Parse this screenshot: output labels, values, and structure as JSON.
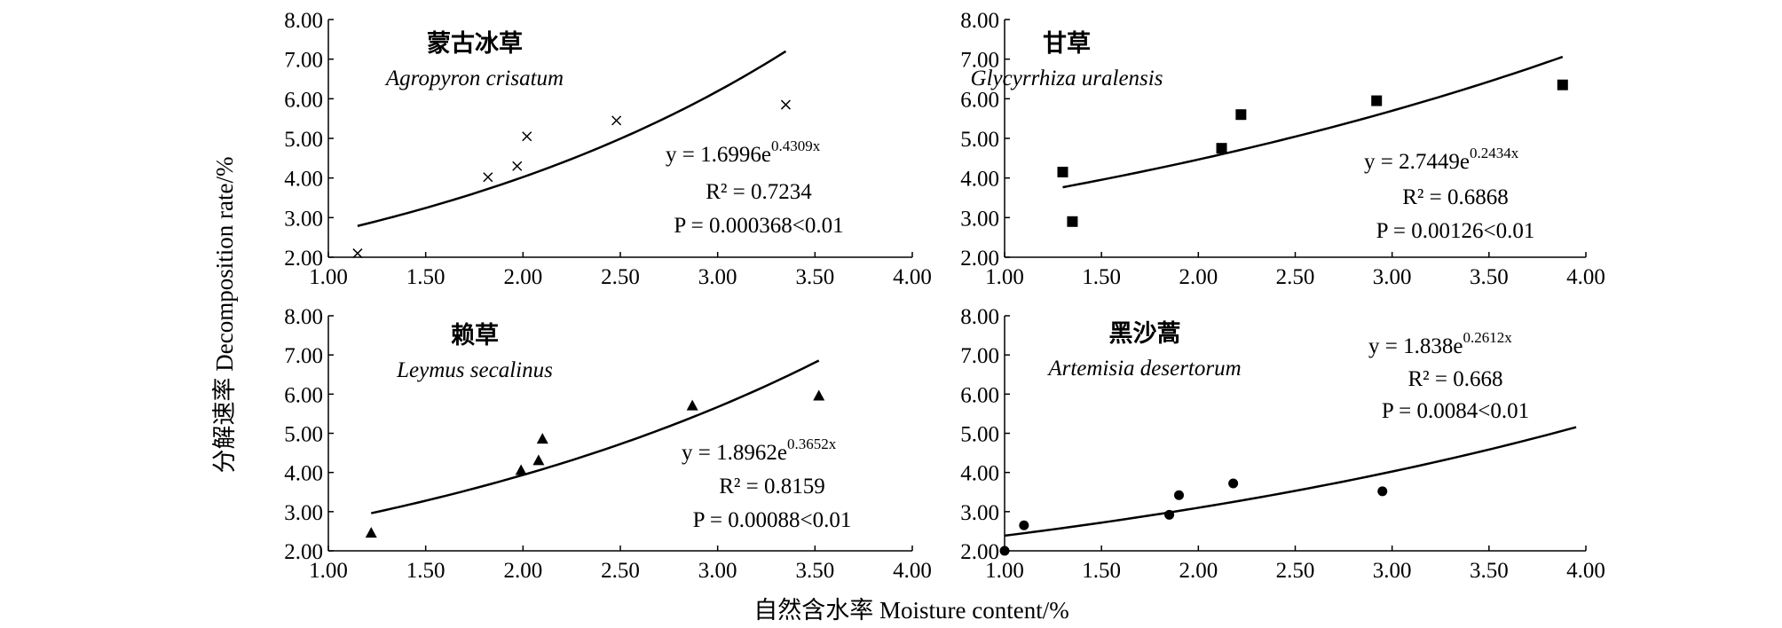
{
  "figure": {
    "ylabel": "分解速率 Decomposition rate/%",
    "xlabel": "自然含水率 Moisture content/%"
  },
  "chart_data": [
    {
      "type": "scatter",
      "id": "agropyron",
      "title_cn": "蒙古冰草",
      "title_latin": "Agropyron crisatum",
      "marker": "x",
      "xlim": [
        1.0,
        4.0
      ],
      "ylim": [
        2.0,
        8.0
      ],
      "x_ticks": [
        "1.00",
        "1.50",
        "2.00",
        "2.50",
        "3.00",
        "3.50",
        "4.00"
      ],
      "y_ticks": [
        "2.00",
        "3.00",
        "4.00",
        "5.00",
        "6.00",
        "7.00",
        "8.00"
      ],
      "points": [
        {
          "x": 1.15,
          "y": 2.1
        },
        {
          "x": 1.82,
          "y": 4.02
        },
        {
          "x": 1.97,
          "y": 4.3
        },
        {
          "x": 2.02,
          "y": 5.05
        },
        {
          "x": 2.48,
          "y": 5.45
        },
        {
          "x": 3.35,
          "y": 5.85
        }
      ],
      "fit": {
        "a": 1.6996,
        "b": 0.4309,
        "x_range": [
          1.15,
          3.35
        ]
      },
      "equation": {
        "coef": "y = 1.6996e",
        "exp": "0.4309x",
        "r2": "R² = 0.7234",
        "p": "P = 0.000368<0.01"
      }
    },
    {
      "type": "scatter",
      "id": "glycyrrhiza",
      "title_cn": "甘草",
      "title_latin": "Glycyrrhiza uralensis",
      "marker": "square",
      "xlim": [
        1.0,
        4.0
      ],
      "ylim": [
        2.0,
        8.0
      ],
      "x_ticks": [
        "1.00",
        "1.50",
        "2.00",
        "2.50",
        "3.00",
        "3.50",
        "4.00"
      ],
      "y_ticks": [
        "2.00",
        "3.00",
        "4.00",
        "5.00",
        "6.00",
        "7.00",
        "8.00"
      ],
      "points": [
        {
          "x": 1.3,
          "y": 4.15
        },
        {
          "x": 1.35,
          "y": 2.9
        },
        {
          "x": 2.12,
          "y": 4.75
        },
        {
          "x": 2.22,
          "y": 5.6
        },
        {
          "x": 2.92,
          "y": 5.95
        },
        {
          "x": 3.88,
          "y": 6.35
        }
      ],
      "fit": {
        "a": 2.7449,
        "b": 0.2434,
        "x_range": [
          1.3,
          3.88
        ]
      },
      "equation": {
        "coef": "y = 2.7449e",
        "exp": "0.2434x",
        "r2": "R² = 0.6868",
        "p": "P = 0.00126<0.01"
      }
    },
    {
      "type": "scatter",
      "id": "leymus",
      "title_cn": "赖草",
      "title_latin": "Leymus secalinus",
      "marker": "triangle",
      "xlim": [
        1.0,
        4.0
      ],
      "ylim": [
        2.0,
        8.0
      ],
      "x_ticks": [
        "1.00",
        "1.50",
        "2.00",
        "2.50",
        "3.00",
        "3.50",
        "4.00"
      ],
      "y_ticks": [
        "2.00",
        "3.00",
        "4.00",
        "5.00",
        "6.00",
        "7.00",
        "8.00"
      ],
      "points": [
        {
          "x": 1.22,
          "y": 2.45
        },
        {
          "x": 1.99,
          "y": 4.05
        },
        {
          "x": 2.08,
          "y": 4.3
        },
        {
          "x": 2.1,
          "y": 4.85
        },
        {
          "x": 2.87,
          "y": 5.7
        },
        {
          "x": 3.52,
          "y": 5.95
        }
      ],
      "fit": {
        "a": 1.8962,
        "b": 0.3652,
        "x_range": [
          1.22,
          3.52
        ]
      },
      "equation": {
        "coef": "y = 1.8962e",
        "exp": "0.3652x",
        "r2": "R² = 0.8159",
        "p": "P = 0.00088<0.01"
      }
    },
    {
      "type": "scatter",
      "id": "artemisia",
      "title_cn": "黑沙蒿",
      "title_latin": "Artemisia desertorum",
      "marker": "circle",
      "xlim": [
        1.0,
        4.0
      ],
      "ylim": [
        2.0,
        8.0
      ],
      "x_ticks": [
        "1.00",
        "1.50",
        "2.00",
        "2.50",
        "3.00",
        "3.50",
        "4.00"
      ],
      "y_ticks": [
        "2.00",
        "3.00",
        "4.00",
        "5.00",
        "6.00",
        "7.00",
        "8.00"
      ],
      "points": [
        {
          "x": 1.0,
          "y": 2.0
        },
        {
          "x": 1.1,
          "y": 2.65
        },
        {
          "x": 1.85,
          "y": 2.92
        },
        {
          "x": 1.9,
          "y": 3.42
        },
        {
          "x": 2.18,
          "y": 3.72
        },
        {
          "x": 2.95,
          "y": 3.52
        }
      ],
      "fit": {
        "a": 1.838,
        "b": 0.2612,
        "x_range": [
          1.0,
          3.95
        ]
      },
      "equation": {
        "coef": "y = 1.838e",
        "exp": "0.2612x",
        "r2": "R² = 0.668",
        "p": "P = 0.0084<0.01"
      }
    }
  ]
}
